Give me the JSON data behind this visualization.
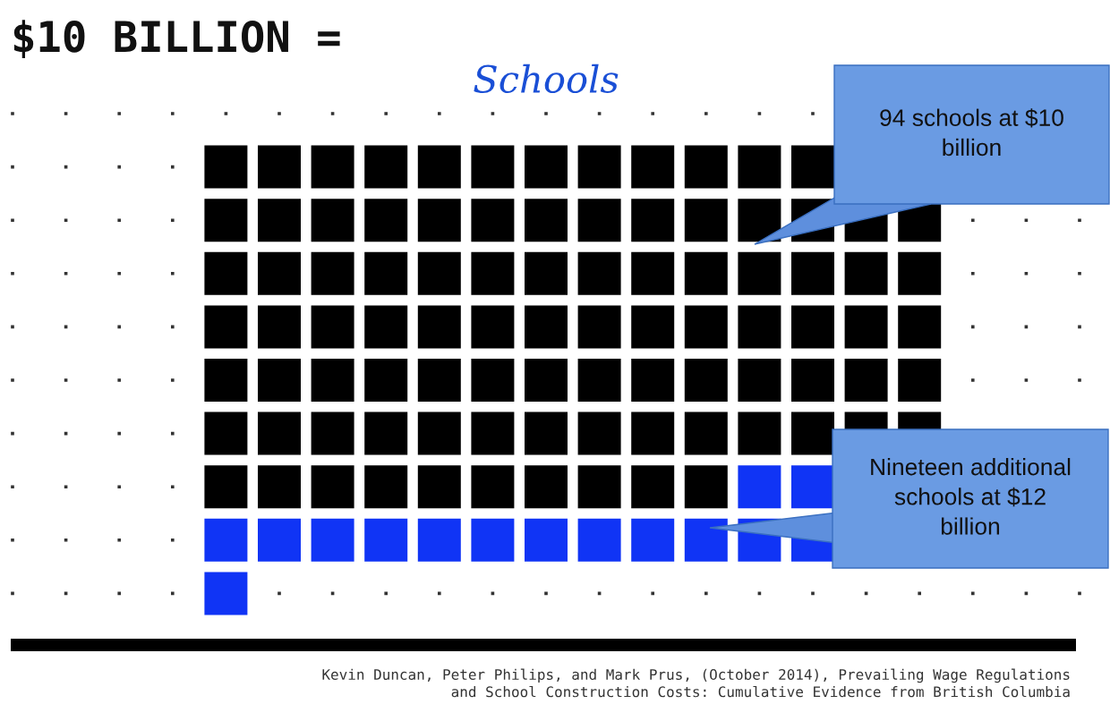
{
  "chart_data": {
    "type": "other",
    "title": "$10 BILLION =",
    "subtitle": "Schools",
    "categories": [
      null,
      null
    ],
    "values": [
      94,
      19
    ],
    "value_labels": [
      "94 schools at $10\nbillion",
      "Nineteen additional\nschools at $12\nbillion"
    ],
    "colors": [
      "#000000",
      "#1034f5"
    ],
    "annotations": [
      "Kevin Duncan, Peter Philips, and Mark Prus, (October 2014), Prevailing Wage Regulations\nand School Construction Costs: Cumulative Evidence from British Columbia"
    ]
  }
}
